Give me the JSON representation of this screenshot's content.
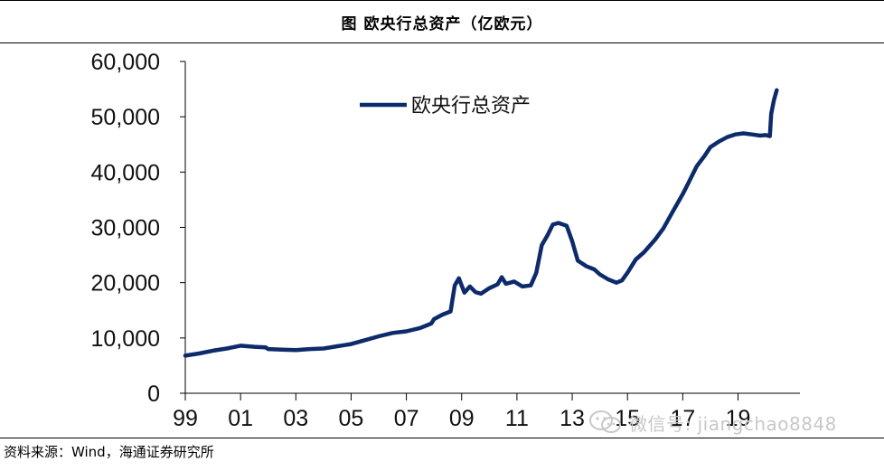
{
  "chart_data": {
    "type": "line",
    "title": "图 欧央行总资产（亿欧元）",
    "xlabel": "",
    "ylabel": "",
    "ylim": [
      0,
      60000
    ],
    "yticks": [
      0,
      10000,
      20000,
      30000,
      40000,
      50000,
      60000
    ],
    "ytick_labels": [
      "0",
      "10,000",
      "20,000",
      "30,000",
      "40,000",
      "50,000",
      "60,000"
    ],
    "xlim": [
      1999,
      2020.75
    ],
    "xticks": [
      1999,
      2001,
      2003,
      2005,
      2007,
      2009,
      2011,
      2013,
      2015,
      2017,
      2019
    ],
    "xtick_labels": [
      "99",
      "01",
      "03",
      "05",
      "07",
      "09",
      "11",
      "13",
      "15",
      "17",
      "19"
    ],
    "grid": false,
    "legend_position": "top-left",
    "series": [
      {
        "name": "欧央行总资产",
        "color": "#0d2a6b",
        "x": [
          1999.0,
          1999.5,
          2000.0,
          2000.5,
          2001.0,
          2001.5,
          2001.9,
          2002.0,
          2002.5,
          2003.0,
          2003.5,
          2004.0,
          2004.5,
          2005.0,
          2005.5,
          2006.0,
          2006.5,
          2007.0,
          2007.5,
          2007.9,
          2008.0,
          2008.3,
          2008.6,
          2008.75,
          2008.9,
          2009.1,
          2009.3,
          2009.5,
          2009.7,
          2010.0,
          2010.3,
          2010.45,
          2010.6,
          2010.9,
          2011.2,
          2011.5,
          2011.7,
          2011.9,
          2012.1,
          2012.3,
          2012.5,
          2012.8,
          2013.0,
          2013.2,
          2013.5,
          2013.8,
          2014.0,
          2014.3,
          2014.6,
          2014.8,
          2015.0,
          2015.3,
          2015.6,
          2016.0,
          2016.3,
          2016.6,
          2017.0,
          2017.2,
          2017.5,
          2017.8,
          2018.0,
          2018.3,
          2018.6,
          2018.9,
          2019.2,
          2019.5,
          2019.8,
          2020.0,
          2020.15,
          2020.2,
          2020.3,
          2020.4
        ],
        "values": [
          6800,
          7200,
          7700,
          8100,
          8600,
          8400,
          8300,
          8000,
          7900,
          7800,
          8000,
          8100,
          8500,
          8900,
          9600,
          10300,
          10900,
          11200,
          11800,
          12600,
          13400,
          14200,
          14800,
          19500,
          20800,
          18200,
          19300,
          18300,
          18000,
          19000,
          19700,
          21000,
          19800,
          20200,
          19300,
          19500,
          21800,
          26800,
          28500,
          30500,
          30800,
          30300,
          27500,
          24000,
          23000,
          22400,
          21500,
          20600,
          20000,
          20400,
          21800,
          24200,
          25500,
          27800,
          29800,
          32500,
          36000,
          38000,
          41000,
          43000,
          44500,
          45500,
          46300,
          46800,
          47000,
          46800,
          46600,
          46700,
          46500,
          50500,
          53000,
          54800
        ]
      }
    ]
  },
  "source_text": "资料来源：Wind，海通证券研究所",
  "watermark_text": "微信号: jiangchao8848",
  "watermark_icon": "wechat-icon"
}
